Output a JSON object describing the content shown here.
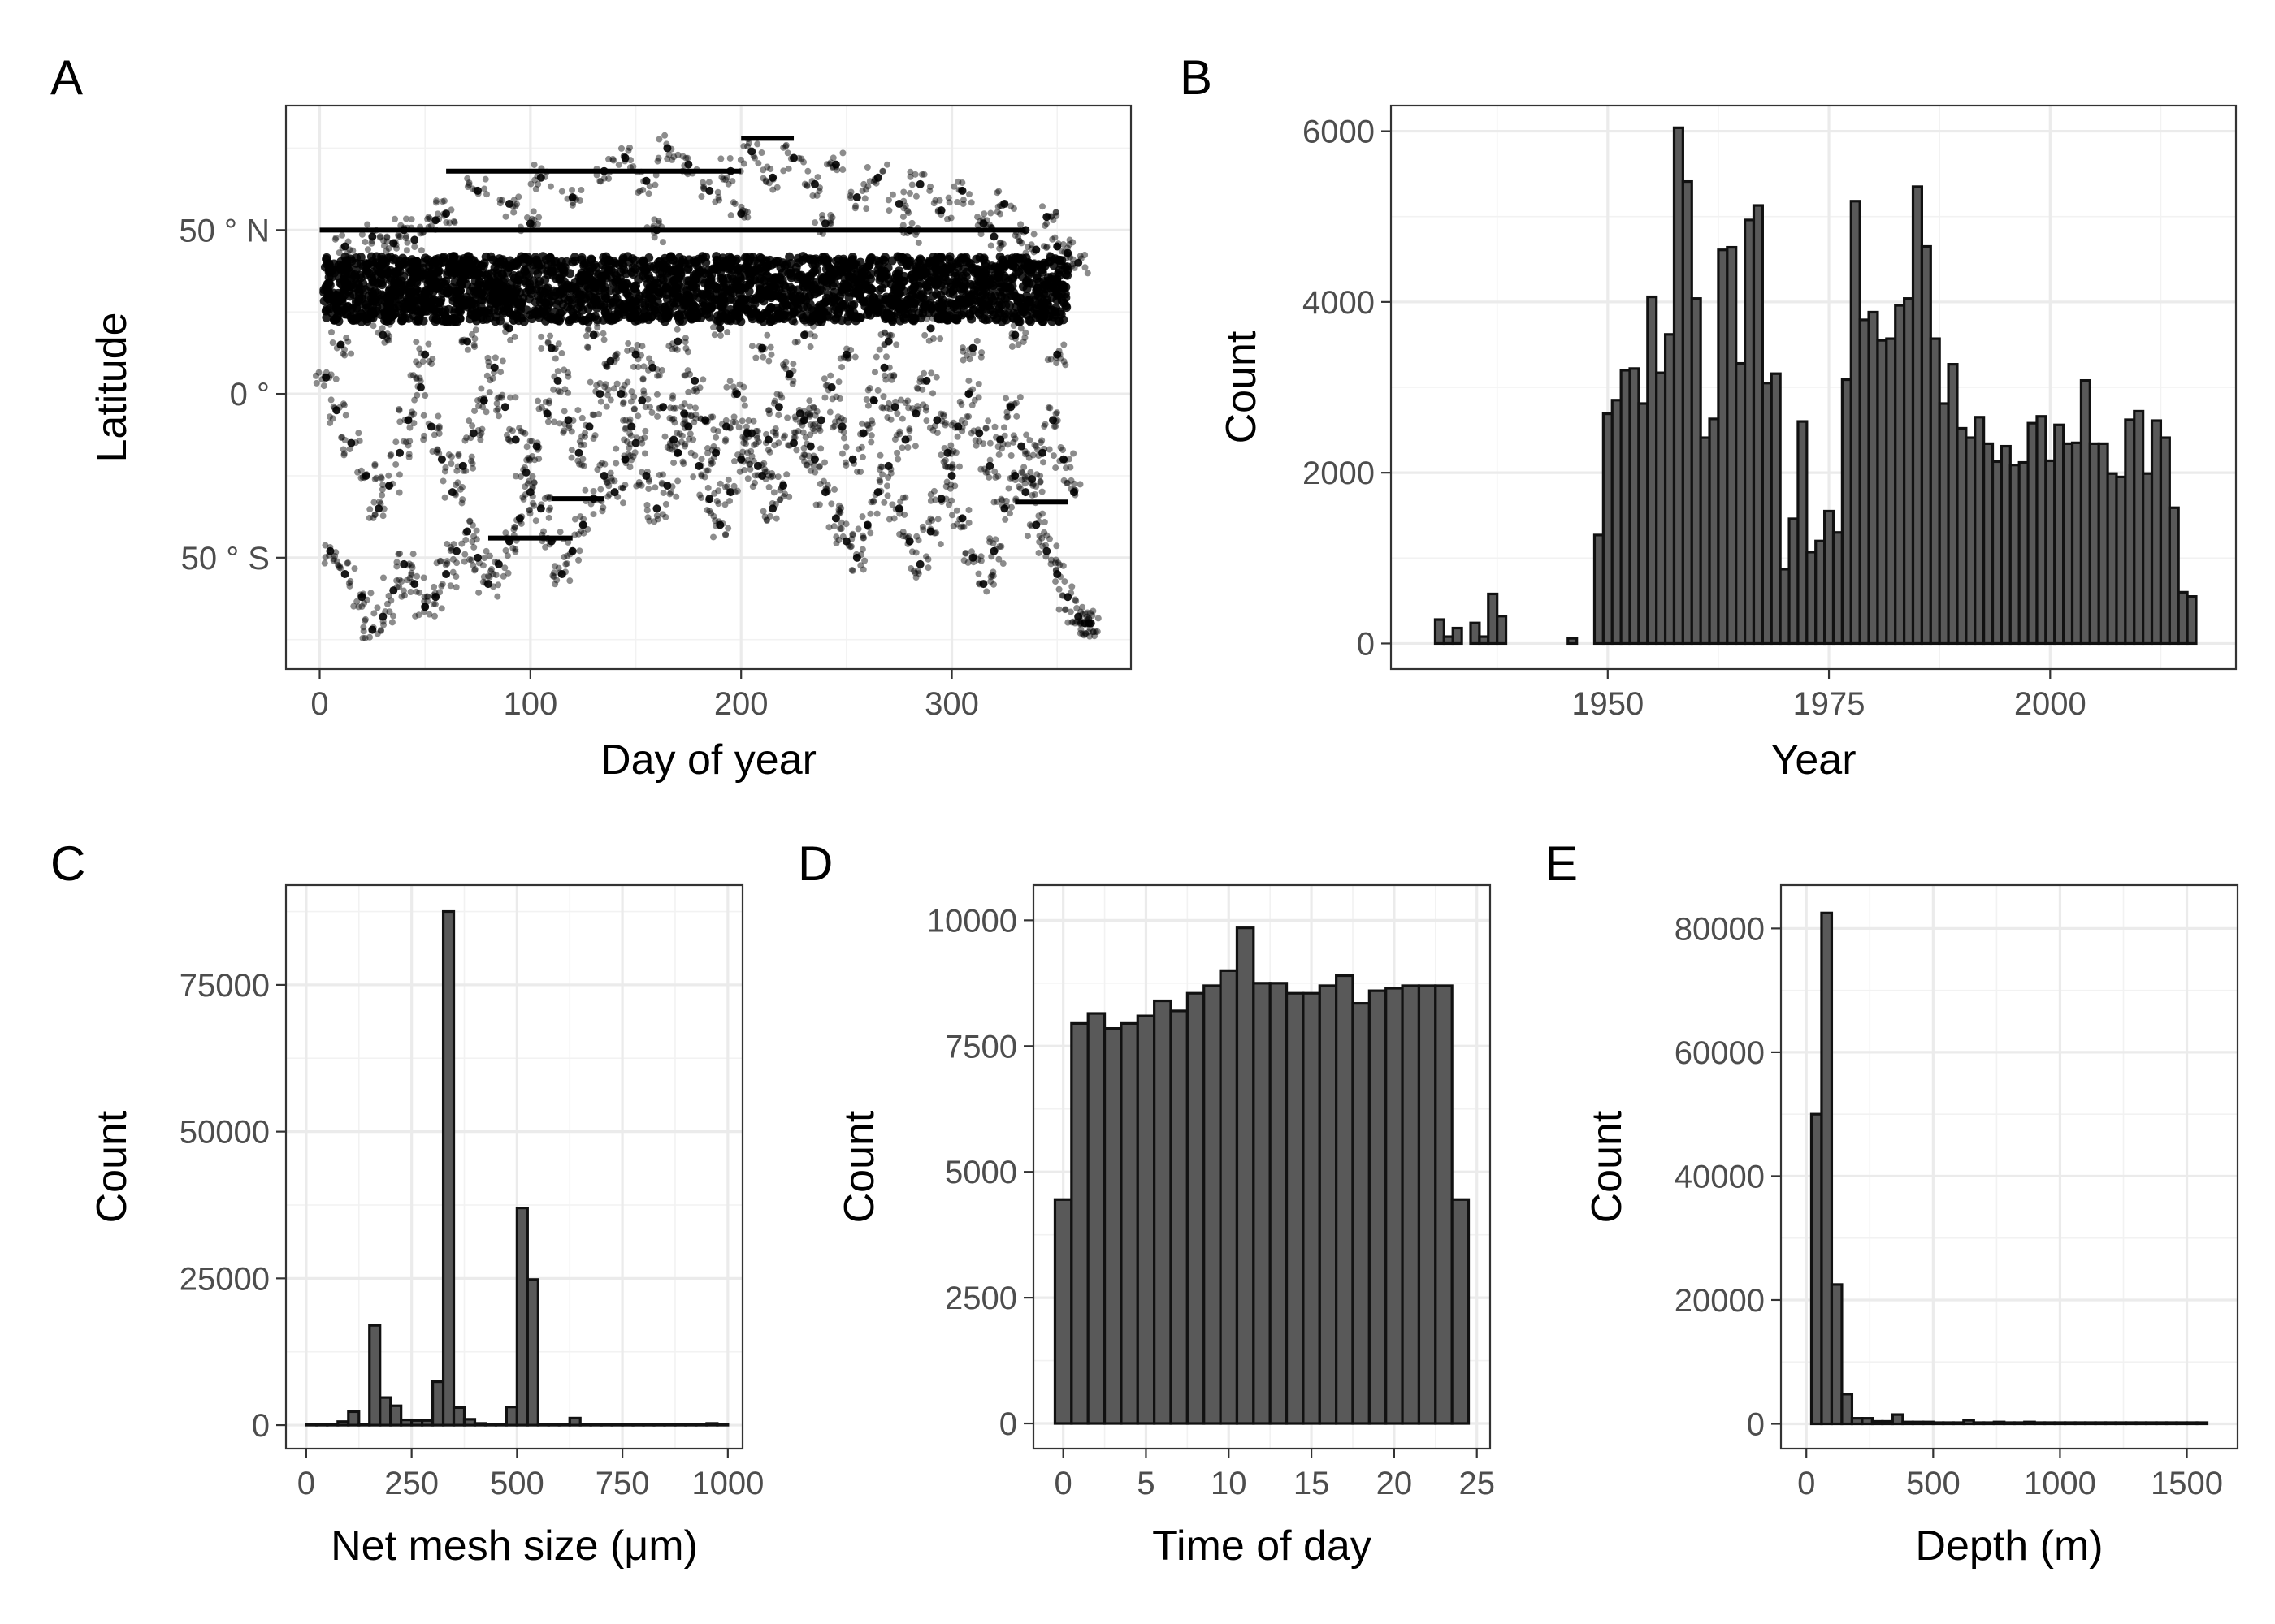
{
  "chart_data": [
    {
      "panel": "A",
      "type": "scatter",
      "xlabel": "Day of year",
      "ylabel": "Latitude",
      "xlim": [
        -16,
        385
      ],
      "ylim": [
        -84,
        88
      ],
      "xticks": [
        0,
        100,
        200,
        300
      ],
      "xtick_labels": [
        "0",
        "100",
        "200",
        "300"
      ],
      "yticks": [
        50,
        0,
        -50
      ],
      "ytick_labels": [
        "50 ° N",
        "0 °",
        "50 ° S"
      ],
      "grid": true,
      "dense_band": {
        "x": [
          2,
          355
        ],
        "y": [
          22,
          42
        ]
      },
      "points": [
        [
          5,
          -48
        ],
        [
          12,
          -55
        ],
        [
          20,
          -62
        ],
        [
          25,
          -72
        ],
        [
          30,
          -68
        ],
        [
          35,
          -60
        ],
        [
          40,
          -52
        ],
        [
          45,
          -58
        ],
        [
          50,
          -65
        ],
        [
          55,
          -62
        ],
        [
          60,
          -55
        ],
        [
          65,
          -48
        ],
        [
          70,
          -42
        ],
        [
          75,
          -50
        ],
        [
          80,
          -58
        ],
        [
          85,
          -52
        ],
        [
          90,
          -45
        ],
        [
          95,
          -38
        ],
        [
          100,
          -30
        ],
        [
          105,
          -35
        ],
        [
          110,
          -45
        ],
        [
          115,
          -55
        ],
        [
          120,
          -48
        ],
        [
          125,
          -40
        ],
        [
          130,
          -32
        ],
        [
          135,
          -25
        ],
        [
          140,
          -30
        ],
        [
          145,
          -20
        ],
        [
          150,
          -15
        ],
        [
          155,
          -25
        ],
        [
          160,
          -35
        ],
        [
          165,
          -28
        ],
        [
          170,
          -18
        ],
        [
          175,
          -10
        ],
        [
          180,
          -22
        ],
        [
          185,
          -32
        ],
        [
          190,
          -40
        ],
        [
          195,
          -30
        ],
        [
          200,
          -20
        ],
        [
          205,
          -12
        ],
        [
          210,
          -25
        ],
        [
          215,
          -35
        ],
        [
          220,
          -28
        ],
        [
          225,
          -15
        ],
        [
          230,
          -8
        ],
        [
          235,
          -20
        ],
        [
          240,
          -30
        ],
        [
          245,
          -38
        ],
        [
          250,
          -45
        ],
        [
          255,
          -50
        ],
        [
          260,
          -40
        ],
        [
          265,
          -30
        ],
        [
          270,
          -22
        ],
        [
          275,
          -35
        ],
        [
          280,
          -45
        ],
        [
          285,
          -52
        ],
        [
          290,
          -42
        ],
        [
          295,
          -32
        ],
        [
          300,
          -25
        ],
        [
          305,
          -38
        ],
        [
          310,
          -50
        ],
        [
          315,
          -58
        ],
        [
          320,
          -48
        ],
        [
          325,
          -35
        ],
        [
          330,
          -25
        ],
        [
          335,
          -30
        ],
        [
          340,
          -40
        ],
        [
          345,
          -48
        ],
        [
          350,
          -55
        ],
        [
          355,
          -62
        ],
        [
          360,
          -68
        ],
        [
          363,
          -70
        ],
        [
          3,
          5
        ],
        [
          8,
          -5
        ],
        [
          15,
          -15
        ],
        [
          22,
          -25
        ],
        [
          28,
          -35
        ],
        [
          33,
          -28
        ],
        [
          38,
          -18
        ],
        [
          42,
          -8
        ],
        [
          48,
          2
        ],
        [
          53,
          -10
        ],
        [
          58,
          -20
        ],
        [
          63,
          -30
        ],
        [
          68,
          -22
        ],
        [
          73,
          -12
        ],
        [
          78,
          -2
        ],
        [
          83,
          8
        ],
        [
          88,
          -4
        ],
        [
          93,
          -14
        ],
        [
          98,
          -24
        ],
        [
          103,
          -16
        ],
        [
          108,
          -6
        ],
        [
          113,
          4
        ],
        [
          118,
          -8
        ],
        [
          123,
          -18
        ],
        [
          128,
          -10
        ],
        [
          133,
          0
        ],
        [
          138,
          10
        ],
        [
          143,
          0
        ],
        [
          148,
          -10
        ],
        [
          153,
          -2
        ],
        [
          158,
          8
        ],
        [
          163,
          -4
        ],
        [
          168,
          -14
        ],
        [
          173,
          -6
        ],
        [
          178,
          4
        ],
        [
          183,
          -8
        ],
        [
          188,
          -18
        ],
        [
          193,
          -10
        ],
        [
          198,
          0
        ],
        [
          203,
          -12
        ],
        [
          208,
          -22
        ],
        [
          213,
          -14
        ],
        [
          218,
          -4
        ],
        [
          223,
          6
        ],
        [
          228,
          -6
        ],
        [
          233,
          -16
        ],
        [
          238,
          -8
        ],
        [
          243,
          2
        ],
        [
          248,
          -10
        ],
        [
          253,
          -20
        ],
        [
          258,
          -12
        ],
        [
          263,
          -2
        ],
        [
          268,
          8
        ],
        [
          273,
          -4
        ],
        [
          278,
          -14
        ],
        [
          283,
          -6
        ],
        [
          288,
          4
        ],
        [
          293,
          -8
        ],
        [
          298,
          -18
        ],
        [
          303,
          -10
        ],
        [
          308,
          0
        ],
        [
          313,
          -12
        ],
        [
          318,
          -22
        ],
        [
          323,
          -14
        ],
        [
          328,
          -4
        ],
        [
          333,
          -16
        ],
        [
          338,
          -26
        ],
        [
          343,
          -18
        ],
        [
          348,
          -8
        ],
        [
          353,
          -20
        ],
        [
          358,
          -30
        ],
        [
          10,
          15
        ],
        [
          30,
          18
        ],
        [
          50,
          12
        ],
        [
          70,
          16
        ],
        [
          90,
          20
        ],
        [
          110,
          14
        ],
        [
          130,
          18
        ],
        [
          150,
          12
        ],
        [
          170,
          16
        ],
        [
          190,
          20
        ],
        [
          210,
          14
        ],
        [
          230,
          18
        ],
        [
          250,
          12
        ],
        [
          270,
          16
        ],
        [
          290,
          20
        ],
        [
          310,
          14
        ],
        [
          330,
          18
        ],
        [
          350,
          12
        ],
        [
          60,
          55
        ],
        [
          75,
          62
        ],
        [
          90,
          58
        ],
        [
          105,
          66
        ],
        [
          120,
          60
        ],
        [
          135,
          68
        ],
        [
          145,
          72
        ],
        [
          155,
          65
        ],
        [
          165,
          75
        ],
        [
          175,
          70
        ],
        [
          185,
          62
        ],
        [
          195,
          68
        ],
        [
          205,
          74
        ],
        [
          215,
          66
        ],
        [
          225,
          72
        ],
        [
          235,
          64
        ],
        [
          245,
          70
        ],
        [
          255,
          60
        ],
        [
          265,
          66
        ],
        [
          275,
          58
        ],
        [
          285,
          64
        ],
        [
          295,
          56
        ],
        [
          305,
          62
        ],
        [
          315,
          52
        ],
        [
          325,
          58
        ],
        [
          335,
          50
        ],
        [
          345,
          54
        ],
        [
          40,
          50
        ],
        [
          55,
          53
        ],
        [
          100,
          52
        ],
        [
          160,
          50
        ],
        [
          200,
          55
        ],
        [
          240,
          52
        ],
        [
          280,
          50
        ],
        [
          320,
          48
        ],
        [
          12,
          45
        ],
        [
          25,
          48
        ],
        [
          35,
          46
        ],
        [
          45,
          47
        ],
        [
          340,
          44
        ],
        [
          350,
          45
        ],
        [
          355,
          43
        ],
        [
          360,
          40
        ],
        [
          365,
          -70
        ],
        [
          366,
          -70
        ]
      ],
      "hlines": [
        {
          "y": 50,
          "x": [
            0,
            335
          ]
        },
        {
          "y": 68,
          "x": [
            60,
            200
          ]
        },
        {
          "y": 78,
          "x": [
            200,
            225
          ]
        },
        {
          "y": -32,
          "x": [
            110,
            135
          ]
        },
        {
          "y": -44,
          "x": [
            80,
            120
          ]
        },
        {
          "y": -33,
          "x": [
            330,
            355
          ]
        }
      ]
    },
    {
      "panel": "B",
      "type": "bar",
      "xlabel": "Year",
      "ylabel": "Count",
      "xlim": [
        1925.5,
        2021
      ],
      "ylim": [
        -300,
        6300
      ],
      "xticks": [
        1950,
        1975,
        2000
      ],
      "xtick_labels": [
        "1950",
        "1975",
        "2000"
      ],
      "yticks": [
        0,
        2000,
        4000,
        6000
      ],
      "ytick_labels": [
        "0",
        "2000",
        "4000",
        "6000"
      ],
      "grid": true,
      "bin_width": 1,
      "x": [
        1931,
        1932,
        1933,
        1934,
        1935,
        1936,
        1937,
        1938,
        1939,
        1940,
        1941,
        1942,
        1943,
        1944,
        1945,
        1946,
        1947,
        1948,
        1949,
        1950,
        1951,
        1952,
        1953,
        1954,
        1955,
        1956,
        1957,
        1958,
        1959,
        1960,
        1961,
        1962,
        1963,
        1964,
        1965,
        1966,
        1967,
        1968,
        1969,
        1970,
        1971,
        1972,
        1973,
        1974,
        1975,
        1976,
        1977,
        1978,
        1979,
        1980,
        1981,
        1982,
        1983,
        1984,
        1985,
        1986,
        1987,
        1988,
        1989,
        1990,
        1991,
        1992,
        1993,
        1994,
        1995,
        1996,
        1997,
        1998,
        1999,
        2000,
        2001,
        2002,
        2003,
        2004,
        2005,
        2006,
        2007,
        2008,
        2009,
        2010,
        2011,
        2012,
        2013,
        2014,
        2015,
        2016
      ],
      "values": [
        280,
        80,
        180,
        0,
        240,
        80,
        580,
        320,
        0,
        0,
        0,
        0,
        0,
        0,
        0,
        60,
        0,
        0,
        1270,
        2690,
        2850,
        3200,
        3220,
        2810,
        4060,
        3170,
        3620,
        6040,
        5410,
        4040,
        2410,
        2630,
        4610,
        4640,
        3280,
        4960,
        5130,
        3050,
        3160,
        870,
        1460,
        2600,
        1070,
        1200,
        1550,
        1300,
        3090,
        5180,
        3790,
        3880,
        3550,
        3570,
        3960,
        4040,
        5350,
        4650,
        3570,
        2810,
        3270,
        2520,
        2410,
        2650,
        2340,
        2130,
        2310,
        2090,
        2120,
        2580,
        2660,
        2140,
        2560,
        2340,
        2350,
        3080,
        2340,
        2340,
        1990,
        1950,
        2620,
        2720,
        1990,
        2610,
        2410,
        1590,
        600,
        550
      ]
    },
    {
      "panel": "C",
      "type": "bar",
      "xlabel": "Net mesh size (μm)",
      "ylabel": "Count",
      "xlim": [
        -48,
        1035
      ],
      "ylim": [
        -4000,
        92000
      ],
      "xticks": [
        0,
        250,
        500,
        750,
        1000
      ],
      "xtick_labels": [
        "0",
        "250",
        "500",
        "750",
        "1000"
      ],
      "yticks": [
        0,
        25000,
        50000,
        75000
      ],
      "ytick_labels": [
        "0",
        "25000",
        "50000",
        "75000"
      ],
      "grid": true,
      "bin_width": 25,
      "x": [
        12.5,
        37.5,
        62.5,
        87.5,
        112.5,
        137.5,
        162.5,
        187.5,
        212.5,
        237.5,
        262.5,
        287.5,
        312.5,
        337.5,
        362.5,
        387.5,
        412.5,
        437.5,
        462.5,
        487.5,
        512.5,
        537.5,
        562.5,
        587.5,
        612.5,
        637.5,
        662.5,
        687.5,
        712.5,
        737.5,
        762.5,
        787.5,
        812.5,
        837.5,
        862.5,
        887.5,
        912.5,
        937.5,
        962.5,
        987.5
      ],
      "values": [
        200,
        200,
        200,
        600,
        2300,
        100,
        17000,
        4700,
        3300,
        900,
        800,
        800,
        7400,
        87500,
        3000,
        1000,
        300,
        100,
        200,
        3100,
        37000,
        24800,
        200,
        200,
        200,
        1200,
        200,
        200,
        200,
        200,
        200,
        200,
        200,
        200,
        200,
        200,
        200,
        200,
        300,
        200
      ]
    },
    {
      "panel": "D",
      "type": "bar",
      "xlabel": "Time of day",
      "ylabel": "Count",
      "xlim": [
        -1.8,
        25.8
      ],
      "ylim": [
        -500,
        10700
      ],
      "xticks": [
        0,
        5,
        10,
        15,
        20,
        25
      ],
      "xtick_labels": [
        "0",
        "5",
        "10",
        "15",
        "20",
        "25"
      ],
      "yticks": [
        0,
        2500,
        5000,
        7500,
        10000
      ],
      "ytick_labels": [
        "0",
        "2500",
        "5000",
        "7500",
        "10000"
      ],
      "grid": true,
      "bin_width": 1,
      "x": [
        0,
        1,
        2,
        3,
        4,
        5,
        6,
        7,
        8,
        9,
        10,
        11,
        12,
        13,
        14,
        15,
        16,
        17,
        18,
        19,
        20,
        21,
        22,
        23,
        24
      ],
      "values": [
        4450,
        7950,
        8150,
        7850,
        7950,
        8100,
        8400,
        8200,
        8550,
        8700,
        9000,
        9850,
        8750,
        8750,
        8550,
        8550,
        8700,
        8900,
        8350,
        8600,
        8650,
        8700,
        8700,
        8700,
        4450
      ]
    },
    {
      "panel": "E",
      "type": "bar",
      "xlabel": "Depth (m)",
      "ylabel": "Count",
      "xlim": [
        -100,
        1700
      ],
      "ylim": [
        -4000,
        87000
      ],
      "xticks": [
        0,
        500,
        1000,
        1500
      ],
      "xtick_labels": [
        "0",
        "500",
        "1000",
        "1500"
      ],
      "yticks": [
        0,
        20000,
        40000,
        60000,
        80000
      ],
      "ytick_labels": [
        "0",
        "20000",
        "40000",
        "60000",
        "80000"
      ],
      "grid": true,
      "bin_width": 40,
      "x": [
        40,
        80,
        120,
        160,
        200,
        240,
        280,
        320,
        360,
        400,
        440,
        480,
        520,
        560,
        600,
        640,
        680,
        720,
        760,
        800,
        840,
        880,
        920,
        960,
        1000,
        1040,
        1080,
        1120,
        1160,
        1200,
        1240,
        1280,
        1320,
        1360,
        1400,
        1440,
        1480,
        1520,
        1560
      ],
      "values": [
        50000,
        82500,
        22500,
        4800,
        900,
        900,
        400,
        400,
        1500,
        300,
        300,
        300,
        200,
        200,
        200,
        600,
        200,
        200,
        300,
        200,
        200,
        300,
        200,
        200,
        200,
        200,
        200,
        200,
        200,
        200,
        200,
        200,
        200,
        200,
        200,
        200,
        200,
        200,
        200
      ]
    }
  ]
}
